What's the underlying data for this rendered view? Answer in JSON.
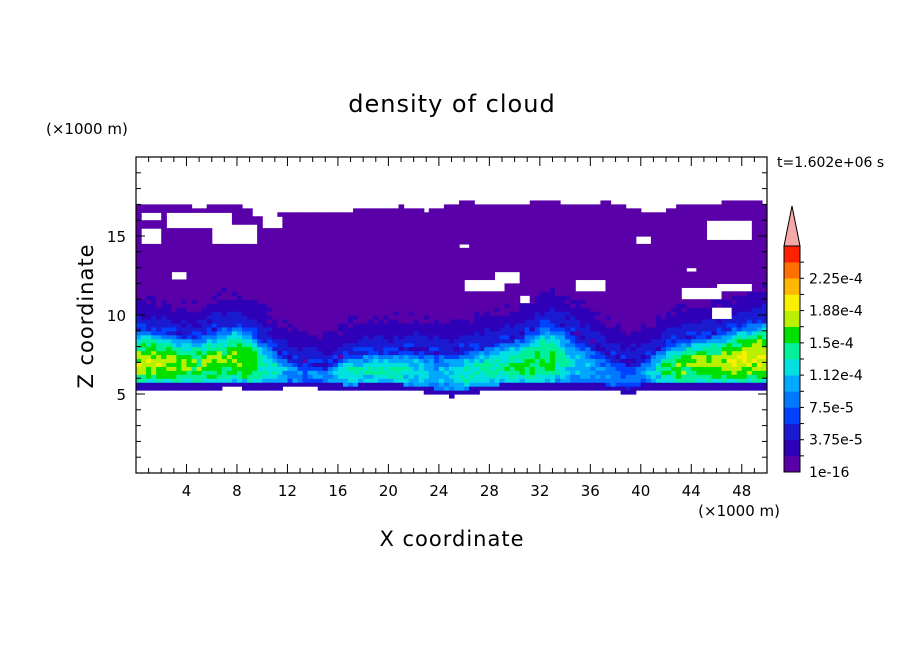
{
  "chart_data": {
    "type": "heatmap",
    "title": "density of cloud",
    "xlabel": "X coordinate",
    "ylabel": "Z coordinate",
    "x_unit": "(×1000 m)",
    "y_unit": "(×1000 m)",
    "time_label": "t=1.602e+06 s",
    "xlim": [
      0,
      50
    ],
    "ylim": [
      0,
      20
    ],
    "x_ticks": [
      4,
      8,
      12,
      16,
      20,
      24,
      28,
      32,
      36,
      40,
      44,
      48
    ],
    "y_ticks": [
      5,
      10,
      15
    ],
    "grid": false,
    "colorbar": {
      "labels": [
        "1e-16",
        "3.75e-5",
        "7.5e-5",
        "1.12e-4",
        "1.5e-4",
        "1.88e-4",
        "2.25e-4"
      ],
      "levels": [
        0,
        1.88e-05,
        3.75e-05,
        5.63e-05,
        7.5e-05,
        9.38e-05,
        0.0001125,
        0.0001313,
        0.00015,
        0.0001688,
        0.0001875,
        0.0002063,
        0.000225,
        0.0002438
      ],
      "colors": [
        "#5a00a8",
        "#2e00b8",
        "#1a1ad0",
        "#0040ff",
        "#0078ff",
        "#00a8ff",
        "#00e0e0",
        "#00f09a",
        "#00e000",
        "#b8f000",
        "#f8f000",
        "#ffb800",
        "#ff7000",
        "#ff2000"
      ],
      "over_color": "#f4a8a8"
    },
    "cloud_field": {
      "cloud_top_km": [
        17.0,
        17.0,
        17.0,
        16.9,
        16.9,
        16.8,
        16.9,
        17.0,
        17.0,
        16.7,
        16.5,
        16.5,
        16.6,
        16.5,
        16.4,
        16.5,
        16.6,
        16.6,
        16.7,
        16.7,
        16.8,
        16.9,
        16.7,
        16.6,
        16.8,
        17.0,
        17.2,
        17.1,
        16.9,
        16.9,
        17.0,
        17.1,
        17.3,
        17.3,
        17.0,
        16.9,
        17.0,
        17.2,
        17.1,
        16.8,
        16.6,
        16.5,
        16.6,
        16.9,
        16.9,
        17.0,
        17.1,
        17.2,
        17.2,
        17.2,
        17.1
      ],
      "cloud_base_km": [
        5.3,
        5.3,
        5.3,
        5.3,
        5.3,
        5.3,
        5.3,
        5.4,
        5.4,
        5.3,
        5.3,
        5.3,
        5.4,
        5.4,
        5.4,
        5.3,
        5.3,
        5.2,
        5.3,
        5.3,
        5.3,
        5.3,
        5.2,
        5.1,
        5.0,
        4.8,
        5.0,
        5.1,
        5.2,
        5.3,
        5.3,
        5.3,
        5.3,
        5.3,
        5.3,
        5.3,
        5.3,
        5.3,
        5.2,
        5.0,
        5.3,
        5.3,
        5.3,
        5.3,
        5.3,
        5.3,
        5.3,
        5.3,
        5.3,
        5.3,
        5.3
      ],
      "core_top_km": [
        9.3,
        9.3,
        9.1,
        9.0,
        8.8,
        8.8,
        9.1,
        9.5,
        9.6,
        9.3,
        8.7,
        8.0,
        7.5,
        7.2,
        7.1,
        7.0,
        7.3,
        7.7,
        7.8,
        7.9,
        7.8,
        7.9,
        8.0,
        7.9,
        7.8,
        7.8,
        8.0,
        8.1,
        8.3,
        8.5,
        8.7,
        9.0,
        9.5,
        9.7,
        9.3,
        8.9,
        8.5,
        8.0,
        7.5,
        7.2,
        7.3,
        7.8,
        8.3,
        8.5,
        8.7,
        8.8,
        8.9,
        9.2,
        9.5,
        9.7,
        9.8
      ],
      "core_peak_density": [
        0.000175,
        0.00018,
        0.000178,
        0.00017,
        0.000165,
        0.00016,
        0.00017,
        0.00016,
        0.000165,
        0.00017,
        0.00014,
        0.000125,
        0.0001,
        9e-05,
        8.5e-05,
        9e-05,
        0.00012,
        0.00013,
        0.000125,
        0.000135,
        0.00013,
        0.000135,
        0.00012,
        0.000115,
        0.00011,
        0.00012,
        0.00013,
        0.000135,
        0.00014,
        0.00014,
        0.000145,
        0.00015,
        0.000155,
        0.00015,
        0.00013,
        0.00011,
        0.0001,
        9e-05,
        8e-05,
        8e-05,
        8.5e-05,
        0.00012,
        0.00015,
        0.00016,
        0.000165,
        0.00017,
        0.000175,
        0.00018,
        0.000185,
        0.000185,
        0.000185
      ],
      "clear_gaps": [
        {
          "x": [
            2.5,
            7.5
          ],
          "z": [
            15.6,
            16.6
          ]
        },
        {
          "x": [
            6.0,
            9.5
          ],
          "z": [
            14.6,
            15.7
          ]
        },
        {
          "x": [
            9.3,
            11.2
          ],
          "z": [
            16.2,
            17.0
          ]
        },
        {
          "x": [
            0.6,
            1.8
          ],
          "z": [
            14.6,
            15.4
          ]
        },
        {
          "x": [
            0.3,
            2.0
          ],
          "z": [
            15.9,
            16.6
          ]
        },
        {
          "x": [
            10.2,
            11.8
          ],
          "z": [
            15.6,
            16.3
          ]
        },
        {
          "x": [
            29.3,
            31.0
          ],
          "z": [
            17.1,
            17.5
          ]
        },
        {
          "x": [
            28.3,
            30.5
          ],
          "z": [
            12.1,
            12.8
          ]
        },
        {
          "x": [
            26.0,
            29.0
          ],
          "z": [
            11.6,
            12.2
          ]
        },
        {
          "x": [
            34.8,
            37.0
          ],
          "z": [
            11.5,
            12.2
          ]
        },
        {
          "x": [
            45.2,
            48.7
          ],
          "z": [
            14.8,
            16.0
          ]
        },
        {
          "x": [
            43.3,
            46.3
          ],
          "z": [
            11.0,
            11.8
          ]
        },
        {
          "x": [
            46.0,
            48.7
          ],
          "z": [
            11.5,
            12.1
          ]
        },
        {
          "x": [
            45.5,
            47.0
          ],
          "z": [
            9.8,
            10.6
          ]
        },
        {
          "x": [
            39.7,
            40.6
          ],
          "z": [
            14.5,
            14.9
          ]
        },
        {
          "x": [
            43.5,
            44.5
          ],
          "z": [
            12.7,
            13.1
          ]
        },
        {
          "x": [
            25.4,
            26.5
          ],
          "z": [
            14.3,
            14.6
          ]
        },
        {
          "x": [
            3.0,
            4.0
          ],
          "z": [
            12.3,
            12.7
          ]
        },
        {
          "x": [
            30.4,
            31.2
          ],
          "z": [
            10.8,
            11.3
          ]
        }
      ]
    }
  }
}
